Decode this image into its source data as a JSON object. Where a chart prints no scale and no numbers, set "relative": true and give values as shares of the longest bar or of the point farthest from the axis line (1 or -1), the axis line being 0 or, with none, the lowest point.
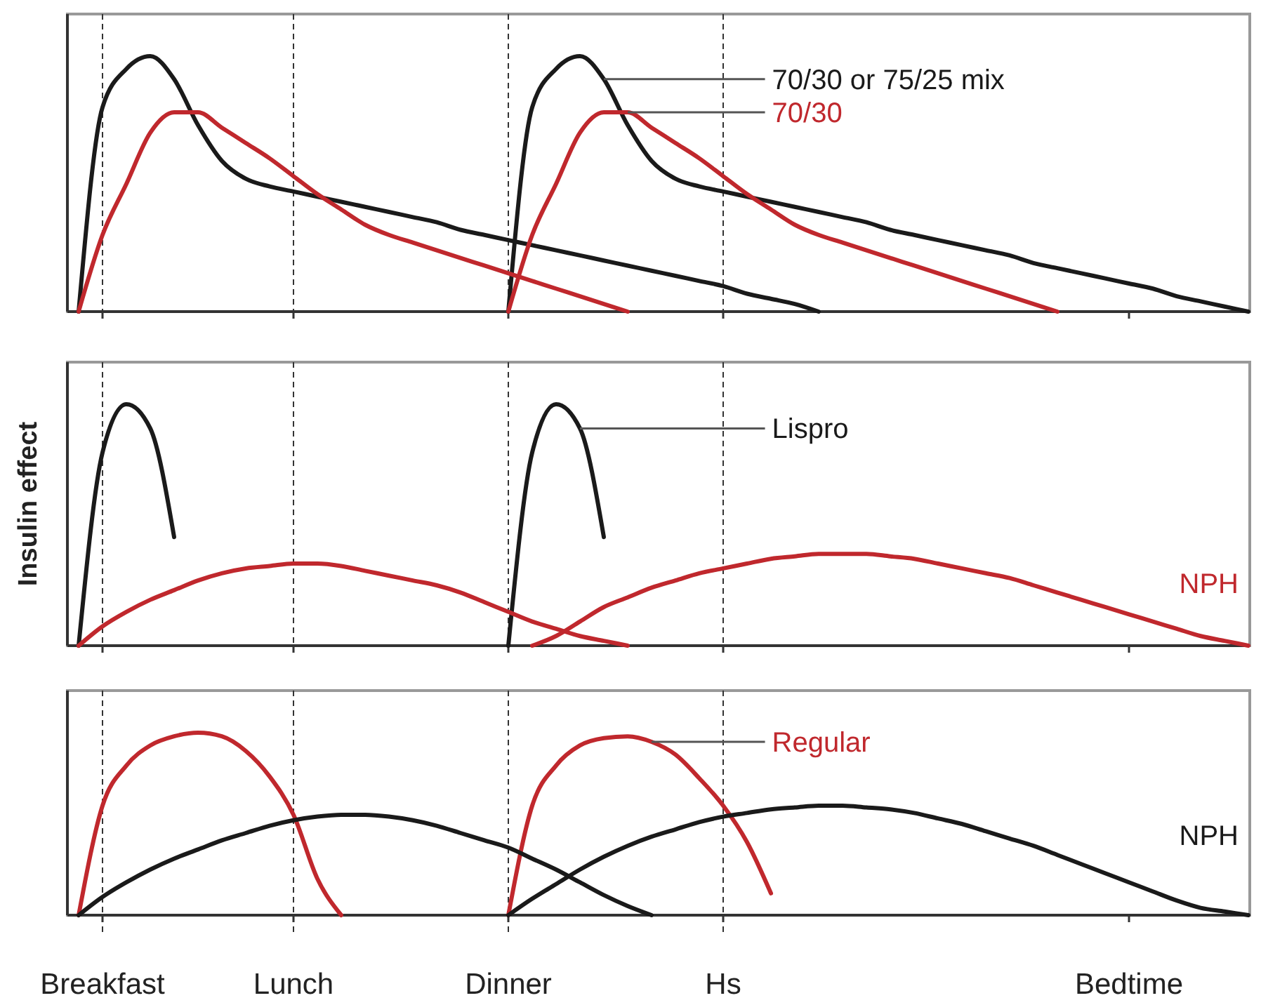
{
  "chart_data": [
    {
      "type": "line",
      "relative": true,
      "tick_labels": false,
      "categories": [
        null,
        "Breakfast",
        null,
        null,
        null,
        null,
        null,
        null,
        null,
        "Lunch",
        null,
        null,
        null,
        null,
        null,
        null,
        null,
        null,
        "Dinner",
        null,
        null,
        null,
        null,
        null,
        null,
        null,
        null,
        "Hs",
        null,
        null,
        null,
        null,
        null,
        null,
        null,
        null,
        null,
        null,
        null,
        null,
        null,
        null,
        null,
        null,
        "Bedtime",
        null,
        null,
        null,
        null,
        null
      ],
      "ref_lines": [
        {
          "axis": "x",
          "value": "Breakfast",
          "line_style": "dashed"
        },
        {
          "axis": "x",
          "value": "Lunch",
          "line_style": "dashed"
        },
        {
          "axis": "x",
          "value": "Dinner",
          "line_style": "dashed"
        },
        {
          "axis": "x",
          "value": "Hs",
          "line_style": "dashed"
        }
      ],
      "series": [
        {
          "color": "#1a1a1a",
          "values": [
            0,
            0.8,
            0.95,
            1,
            0.91,
            0.73,
            0.59,
            0.52,
            0.49,
            0.47,
            0.45,
            0.43,
            0.41,
            0.39,
            0.37,
            0.35,
            0.32,
            0.3,
            0.28,
            0.26,
            0.24,
            0.22,
            0.2,
            0.18,
            0.16,
            0.14,
            0.12,
            0.1,
            0.07,
            0.05,
            0.03,
            0,
            null,
            null,
            null,
            null,
            null,
            null,
            null,
            null,
            null,
            null,
            null,
            null,
            null,
            null,
            null,
            null,
            null,
            null
          ]
        },
        {
          "name": "70/30 or 75/25 mix",
          "color": "#1a1a1a",
          "values": [
            null,
            null,
            null,
            null,
            null,
            null,
            null,
            null,
            null,
            null,
            null,
            null,
            null,
            null,
            null,
            null,
            null,
            null,
            0,
            0.8,
            0.95,
            1,
            0.91,
            0.73,
            0.59,
            0.52,
            0.49,
            0.47,
            0.45,
            0.43,
            0.41,
            0.39,
            0.37,
            0.35,
            0.32,
            0.3,
            0.28,
            0.26,
            0.24,
            0.22,
            0.19,
            0.17,
            0.15,
            0.13,
            0.11,
            0.09,
            0.06,
            0.04,
            0.02,
            0
          ]
        },
        {
          "color": "#c0282d",
          "values": [
            0,
            0.3,
            0.5,
            0.7,
            0.78,
            0.78,
            0.72,
            0.66,
            0.6,
            0.53,
            0.46,
            0.4,
            0.34,
            0.3,
            0.27,
            0.24,
            0.21,
            0.18,
            0.15,
            0.12,
            0.09,
            0.06,
            0.03,
            0,
            null,
            null,
            null,
            null,
            null,
            null,
            null,
            null,
            null,
            null,
            null,
            null,
            null,
            null,
            null,
            null,
            null,
            null,
            null,
            null,
            null,
            null,
            null,
            null,
            null,
            null
          ]
        },
        {
          "name": "70/30",
          "color": "#c0282d",
          "values": [
            null,
            null,
            null,
            null,
            null,
            null,
            null,
            null,
            null,
            null,
            null,
            null,
            null,
            null,
            null,
            null,
            null,
            null,
            0,
            0.3,
            0.5,
            0.7,
            0.78,
            0.78,
            0.72,
            0.66,
            0.6,
            0.53,
            0.46,
            0.4,
            0.34,
            0.3,
            0.27,
            0.24,
            0.21,
            0.18,
            0.15,
            0.12,
            0.09,
            0.06,
            0.03,
            0,
            null,
            null,
            null,
            null,
            null,
            null,
            null,
            null
          ]
        }
      ]
    },
    {
      "type": "line",
      "relative": true,
      "tick_labels": false,
      "ylabel": "Insulin effect",
      "categories": [
        null,
        "Breakfast",
        null,
        null,
        null,
        null,
        null,
        null,
        null,
        "Lunch",
        null,
        null,
        null,
        null,
        null,
        null,
        null,
        null,
        "Dinner",
        null,
        null,
        null,
        null,
        null,
        null,
        null,
        null,
        "Hs",
        null,
        null,
        null,
        null,
        null,
        null,
        null,
        null,
        null,
        null,
        null,
        null,
        null,
        null,
        null,
        null,
        "Bedtime",
        null,
        null,
        null,
        null,
        null
      ],
      "ref_lines": [
        {
          "axis": "x",
          "value": "Breakfast",
          "line_style": "dashed"
        },
        {
          "axis": "x",
          "value": "Lunch",
          "line_style": "dashed"
        },
        {
          "axis": "x",
          "value": "Dinner",
          "line_style": "dashed"
        },
        {
          "axis": "x",
          "value": "Hs",
          "line_style": "dashed"
        }
      ],
      "series": [
        {
          "color": "#1a1a1a",
          "values": [
            0,
            0.8,
            1,
            0.9,
            0.45,
            null,
            null,
            null,
            null,
            null,
            null,
            null,
            null,
            null,
            null,
            null,
            null,
            null,
            null,
            null,
            null,
            null,
            null,
            null,
            null,
            null,
            null,
            null,
            null,
            null,
            null,
            null,
            null,
            null,
            null,
            null,
            null,
            null,
            null,
            null,
            null,
            null,
            null,
            null,
            null,
            null,
            null,
            null,
            null,
            null
          ]
        },
        {
          "name": "Lispro",
          "color": "#1a1a1a",
          "values": [
            null,
            null,
            null,
            null,
            null,
            null,
            null,
            null,
            null,
            null,
            null,
            null,
            null,
            null,
            null,
            null,
            null,
            null,
            0,
            0.8,
            1,
            0.9,
            0.45,
            null,
            null,
            null,
            null,
            null,
            null,
            null,
            null,
            null,
            null,
            null,
            null,
            null,
            null,
            null,
            null,
            null,
            null,
            null,
            null,
            null,
            null,
            null,
            null,
            null,
            null,
            null
          ]
        },
        {
          "color": "#c0282d",
          "values": [
            0,
            0.08,
            0.14,
            0.19,
            0.23,
            0.27,
            0.3,
            0.32,
            0.33,
            0.34,
            0.34,
            0.33,
            0.31,
            0.29,
            0.27,
            0.25,
            0.22,
            0.18,
            0.14,
            0.1,
            0.07,
            0.04,
            0.02,
            0,
            null,
            null,
            null,
            null,
            null,
            null,
            null,
            null,
            null,
            null,
            null,
            null,
            null,
            null,
            null,
            null,
            null,
            null,
            null,
            null,
            null,
            null,
            null,
            null,
            null,
            null
          ]
        },
        {
          "name": "NPH",
          "color": "#c0282d",
          "values": [
            null,
            null,
            null,
            null,
            null,
            null,
            null,
            null,
            null,
            null,
            null,
            null,
            null,
            null,
            null,
            null,
            null,
            null,
            null,
            0,
            0.04,
            0.1,
            0.16,
            0.2,
            0.24,
            0.27,
            0.3,
            0.32,
            0.34,
            0.36,
            0.37,
            0.38,
            0.38,
            0.38,
            0.37,
            0.36,
            0.34,
            0.32,
            0.3,
            0.28,
            0.25,
            0.22,
            0.19,
            0.16,
            0.13,
            0.1,
            0.07,
            0.04,
            0.02,
            0
          ]
        }
      ]
    },
    {
      "type": "line",
      "relative": true,
      "tick_labels": "x",
      "categories": [
        null,
        "Breakfast",
        null,
        null,
        null,
        null,
        null,
        null,
        null,
        "Lunch",
        null,
        null,
        null,
        null,
        null,
        null,
        null,
        null,
        "Dinner",
        null,
        null,
        null,
        null,
        null,
        null,
        null,
        null,
        "Hs",
        null,
        null,
        null,
        null,
        null,
        null,
        null,
        null,
        null,
        null,
        null,
        null,
        null,
        null,
        null,
        null,
        "Bedtime",
        null,
        null,
        null,
        null,
        null
      ],
      "ref_lines": [
        {
          "axis": "x",
          "value": "Breakfast",
          "line_style": "dashed"
        },
        {
          "axis": "x",
          "value": "Lunch",
          "line_style": "dashed"
        },
        {
          "axis": "x",
          "value": "Dinner",
          "line_style": "dashed"
        },
        {
          "axis": "x",
          "value": "Hs",
          "line_style": "dashed"
        }
      ],
      "series": [
        {
          "color": "#c0282d",
          "values": [
            0,
            0.6,
            0.82,
            0.93,
            0.98,
            1,
            0.98,
            0.9,
            0.76,
            0.55,
            0.2,
            0,
            null,
            null,
            null,
            null,
            null,
            null,
            null,
            null,
            null,
            null,
            null,
            null,
            null,
            null,
            null,
            null,
            null,
            null,
            null,
            null,
            null,
            null,
            null,
            null,
            null,
            null,
            null,
            null,
            null,
            null,
            null,
            null,
            null,
            null,
            null,
            null,
            null,
            null
          ]
        },
        {
          "name": "Regular",
          "color": "#c0282d",
          "values": [
            null,
            null,
            null,
            null,
            null,
            null,
            null,
            null,
            null,
            null,
            null,
            null,
            null,
            null,
            null,
            null,
            null,
            null,
            0,
            0.6,
            0.82,
            0.93,
            0.97,
            0.98,
            0.95,
            0.88,
            0.75,
            0.6,
            0.4,
            0.12,
            null,
            null,
            null,
            null,
            null,
            null,
            null,
            null,
            null,
            null,
            null,
            null,
            null,
            null,
            null,
            null,
            null,
            null,
            null,
            null
          ]
        },
        {
          "color": "#1a1a1a",
          "values": [
            0,
            0.1,
            0.18,
            0.25,
            0.31,
            0.36,
            0.41,
            0.45,
            0.49,
            0.52,
            0.54,
            0.55,
            0.55,
            0.54,
            0.52,
            0.49,
            0.45,
            0.41,
            0.37,
            0.31,
            0.25,
            0.18,
            0.11,
            0.05,
            0,
            null,
            null,
            null,
            null,
            null,
            null,
            null,
            null,
            null,
            null,
            null,
            null,
            null,
            null,
            null,
            null,
            null,
            null,
            null,
            null,
            null,
            null,
            null,
            null,
            null
          ]
        },
        {
          "name": "NPH",
          "color": "#1a1a1a",
          "values": [
            null,
            null,
            null,
            null,
            null,
            null,
            null,
            null,
            null,
            null,
            null,
            null,
            null,
            null,
            null,
            null,
            null,
            null,
            0,
            0.09,
            0.17,
            0.25,
            0.32,
            0.38,
            0.43,
            0.47,
            0.51,
            0.54,
            0.56,
            0.58,
            0.59,
            0.6,
            0.6,
            0.59,
            0.58,
            0.56,
            0.53,
            0.5,
            0.46,
            0.42,
            0.38,
            0.33,
            0.28,
            0.23,
            0.18,
            0.13,
            0.08,
            0.04,
            0.02,
            0
          ]
        }
      ]
    }
  ]
}
